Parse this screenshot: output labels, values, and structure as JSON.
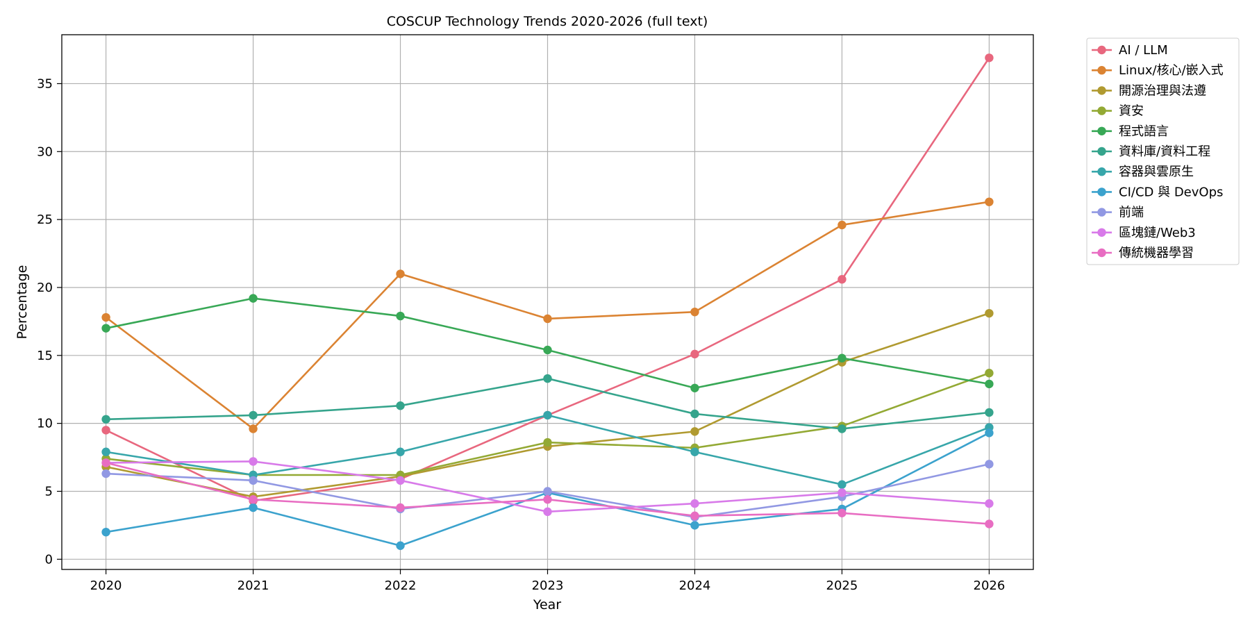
{
  "chart_data": {
    "type": "line",
    "title": "COSCUP Technology Trends 2020-2026 (full text)",
    "xlabel": "Year",
    "ylabel": "Percentage",
    "x": [
      2020,
      2021,
      2022,
      2023,
      2024,
      2025,
      2026
    ],
    "xlim": [
      2019.7,
      2026.3
    ],
    "ylim": [
      -0.75,
      38.6
    ],
    "yticks": [
      0,
      5,
      10,
      15,
      20,
      25,
      30,
      35
    ],
    "grid": true,
    "legend_position": "outside-top-right",
    "series": [
      {
        "name": "AI / LLM",
        "color": "#e8677e",
        "values": [
          9.5,
          4.3,
          5.9,
          10.6,
          15.1,
          20.6,
          36.9
        ]
      },
      {
        "name": "Linux/核心/嵌入式",
        "color": "#db8332",
        "values": [
          17.8,
          9.6,
          21.0,
          17.7,
          18.2,
          24.6,
          26.3
        ]
      },
      {
        "name": "開源治理與法遵",
        "color": "#b09a30",
        "values": [
          6.8,
          4.6,
          6.1,
          8.3,
          9.4,
          14.5,
          18.1
        ]
      },
      {
        "name": "資安",
        "color": "#93a934",
        "values": [
          7.4,
          6.2,
          6.2,
          8.6,
          8.2,
          9.8,
          13.7
        ]
      },
      {
        "name": "程式語言",
        "color": "#38a856",
        "values": [
          17.0,
          19.2,
          17.9,
          15.4,
          12.6,
          14.8,
          12.9
        ]
      },
      {
        "name": "資料庫/資料工程",
        "color": "#35a48c",
        "values": [
          10.3,
          10.6,
          11.3,
          13.3,
          10.7,
          9.6,
          10.8
        ]
      },
      {
        "name": "容器與雲原生",
        "color": "#37a6aa",
        "values": [
          7.9,
          6.2,
          7.9,
          10.6,
          7.9,
          5.5,
          9.7
        ]
      },
      {
        "name": "CI/CD 與 DevOps",
        "color": "#3ba2cd",
        "values": [
          2.0,
          3.8,
          1.0,
          4.9,
          2.5,
          3.7,
          9.3
        ]
      },
      {
        "name": "前端",
        "color": "#9198e3",
        "values": [
          6.3,
          5.8,
          3.7,
          5.0,
          3.1,
          4.6,
          7.0
        ]
      },
      {
        "name": "區塊鏈/Web3",
        "color": "#d87ae9",
        "values": [
          7.1,
          7.2,
          5.8,
          3.5,
          4.1,
          4.9,
          4.1
        ]
      },
      {
        "name": "傳統機器學習",
        "color": "#e86dc2",
        "values": [
          7.1,
          4.4,
          3.8,
          4.4,
          3.2,
          3.4,
          2.6
        ]
      }
    ]
  }
}
